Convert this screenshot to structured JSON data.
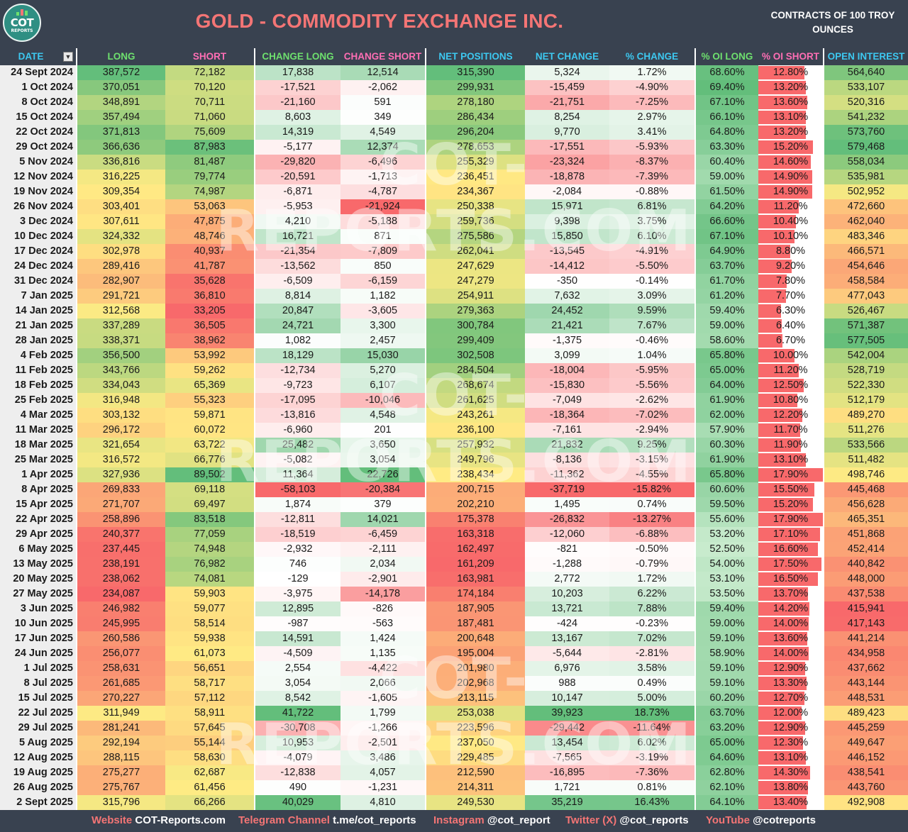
{
  "header": {
    "logo_text": "COT",
    "logo_sub": "REPORTS",
    "title": "GOLD - COMMODITY EXCHANGE INC.",
    "subtitle": "CONTRACTS OF 100 TROY OUNCES"
  },
  "columns": {
    "date": "DATE",
    "long": "LONG",
    "short": "SHORT",
    "change_long": "CHANGE LONG",
    "change_short": "CHANGE SHORT",
    "net_positions": "NET POSITIONS",
    "net_change": "NET CHANGE",
    "pct_change": "% CHANGE",
    "pct_oi_long": "% OI LONG",
    "pct_oi_short": "% OI SHORT",
    "open_interest": "OPEN INTEREST"
  },
  "watermark": "COT-REPORTS.COM",
  "footer": [
    {
      "label": "Website",
      "value": "COT-Reports.com"
    },
    {
      "label": "Telegram Channel",
      "value": "t.me/cot_reports"
    },
    {
      "label": "Instagram",
      "value": "@cot_report"
    },
    {
      "label": "Twitter (X)",
      "value": "@cot_reports"
    },
    {
      "label": "YouTube",
      "value": "@cotreports"
    }
  ],
  "rows": [
    [
      "24 Sept 2024",
      "387,572",
      "72,182",
      "17,838",
      "12,514",
      "315,390",
      "5,324",
      "1.72%",
      "68.60%",
      "12.80%",
      "564,640"
    ],
    [
      "1 Oct 2024",
      "370,051",
      "70,120",
      "-17,521",
      "-2,062",
      "299,931",
      "-15,459",
      "-4.90%",
      "69.40%",
      "13.20%",
      "533,107"
    ],
    [
      "8 Oct 2024",
      "348,891",
      "70,711",
      "-21,160",
      "591",
      "278,180",
      "-21,751",
      "-7.25%",
      "67.10%",
      "13.60%",
      "520,316"
    ],
    [
      "15 Oct 2024",
      "357,494",
      "71,060",
      "8,603",
      "349",
      "286,434",
      "8,254",
      "2.97%",
      "66.10%",
      "13.10%",
      "541,232"
    ],
    [
      "22 Oct 2024",
      "371,813",
      "75,609",
      "14,319",
      "4,549",
      "296,204",
      "9,770",
      "3.41%",
      "64.80%",
      "13.20%",
      "573,760"
    ],
    [
      "29 Oct 2024",
      "366,636",
      "87,983",
      "-5,177",
      "12,374",
      "278,653",
      "-17,551",
      "-5.93%",
      "63.30%",
      "15.20%",
      "579,468"
    ],
    [
      "5 Nov 2024",
      "336,816",
      "81,487",
      "-29,820",
      "-6,496",
      "255,329",
      "-23,324",
      "-8.37%",
      "60.40%",
      "14.60%",
      "558,034"
    ],
    [
      "12 Nov 2024",
      "316,225",
      "79,774",
      "-20,591",
      "-1,713",
      "236,451",
      "-18,878",
      "-7.39%",
      "59.00%",
      "14.90%",
      "535,981"
    ],
    [
      "19 Nov 2024",
      "309,354",
      "74,987",
      "-6,871",
      "-4,787",
      "234,367",
      "-2,084",
      "-0.88%",
      "61.50%",
      "14.90%",
      "502,952"
    ],
    [
      "26 Nov 2024",
      "303,401",
      "53,063",
      "-5,953",
      "-21,924",
      "250,338",
      "15,971",
      "6.81%",
      "64.20%",
      "11.20%",
      "472,660"
    ],
    [
      "3 Dec 2024",
      "307,611",
      "47,875",
      "4,210",
      "-5,188",
      "259,736",
      "9,398",
      "3.75%",
      "66.60%",
      "10.40%",
      "462,040"
    ],
    [
      "10 Dec 2024",
      "324,332",
      "48,746",
      "16,721",
      "871",
      "275,586",
      "15,850",
      "6.10%",
      "67.10%",
      "10.10%",
      "483,346"
    ],
    [
      "17 Dec 2024",
      "302,978",
      "40,937",
      "-21,354",
      "-7,809",
      "262,041",
      "-13,545",
      "-4.91%",
      "64.90%",
      "8.80%",
      "466,571"
    ],
    [
      "24 Dec 2024",
      "289,416",
      "41,787",
      "-13,562",
      "850",
      "247,629",
      "-14,412",
      "-5.50%",
      "63.70%",
      "9.20%",
      "454,646"
    ],
    [
      "31 Dec 2024",
      "282,907",
      "35,628",
      "-6,509",
      "-6,159",
      "247,279",
      "-350",
      "-0.14%",
      "61.70%",
      "7.80%",
      "458,584"
    ],
    [
      "7 Jan 2025",
      "291,721",
      "36,810",
      "8,814",
      "1,182",
      "254,911",
      "7,632",
      "3.09%",
      "61.20%",
      "7.70%",
      "477,043"
    ],
    [
      "14 Jan 2025",
      "312,568",
      "33,205",
      "20,847",
      "-3,605",
      "279,363",
      "24,452",
      "9.59%",
      "59.40%",
      "6.30%",
      "526,467"
    ],
    [
      "21 Jan 2025",
      "337,289",
      "36,505",
      "24,721",
      "3,300",
      "300,784",
      "21,421",
      "7.67%",
      "59.00%",
      "6.40%",
      "571,387"
    ],
    [
      "28 Jan 2025",
      "338,371",
      "38,962",
      "1,082",
      "2,457",
      "299,409",
      "-1,375",
      "-0.46%",
      "58.60%",
      "6.70%",
      "577,505"
    ],
    [
      "4 Feb 2025",
      "356,500",
      "53,992",
      "18,129",
      "15,030",
      "302,508",
      "3,099",
      "1.04%",
      "65.80%",
      "10.00%",
      "542,004"
    ],
    [
      "11 Feb 2025",
      "343,766",
      "59,262",
      "-12,734",
      "5,270",
      "284,504",
      "-18,004",
      "-5.95%",
      "65.00%",
      "11.20%",
      "528,719"
    ],
    [
      "18 Feb 2025",
      "334,043",
      "65,369",
      "-9,723",
      "6,107",
      "268,674",
      "-15,830",
      "-5.56%",
      "64.00%",
      "12.50%",
      "522,330"
    ],
    [
      "25 Feb 2025",
      "316,948",
      "55,323",
      "-17,095",
      "-10,046",
      "261,625",
      "-7,049",
      "-2.62%",
      "61.90%",
      "10.80%",
      "512,179"
    ],
    [
      "4 Mar 2025",
      "303,132",
      "59,871",
      "-13,816",
      "4,548",
      "243,261",
      "-18,364",
      "-7.02%",
      "62.00%",
      "12.20%",
      "489,270"
    ],
    [
      "11 Mar 2025",
      "296,172",
      "60,072",
      "-6,960",
      "201",
      "236,100",
      "-7,161",
      "-2.94%",
      "57.90%",
      "11.70%",
      "511,276"
    ],
    [
      "18 Mar 2025",
      "321,654",
      "63,722",
      "25,482",
      "3,650",
      "257,932",
      "21,832",
      "9.25%",
      "60.30%",
      "11.90%",
      "533,566"
    ],
    [
      "25 Mar 2025",
      "316,572",
      "66,776",
      "-5,082",
      "3,054",
      "249,796",
      "-8,136",
      "-3.15%",
      "61.90%",
      "13.10%",
      "511,482"
    ],
    [
      "1 Apr 2025",
      "327,936",
      "89,502",
      "11,364",
      "22,726",
      "238,434",
      "-11,362",
      "-4.55%",
      "65.80%",
      "17.90%",
      "498,746"
    ],
    [
      "8 Apr 2025",
      "269,833",
      "69,118",
      "-58,103",
      "-20,384",
      "200,715",
      "-37,719",
      "-15.82%",
      "60.60%",
      "15.50%",
      "445,468"
    ],
    [
      "15 Apr 2025",
      "271,707",
      "69,497",
      "1,874",
      "379",
      "202,210",
      "1,495",
      "0.74%",
      "59.50%",
      "15.20%",
      "456,628"
    ],
    [
      "22 Apr 2025",
      "258,896",
      "83,518",
      "-12,811",
      "14,021",
      "175,378",
      "-26,832",
      "-13.27%",
      "55.60%",
      "17.90%",
      "465,351"
    ],
    [
      "29 Apr 2025",
      "240,377",
      "77,059",
      "-18,519",
      "-6,459",
      "163,318",
      "-12,060",
      "-6.88%",
      "53.20%",
      "17.10%",
      "451,868"
    ],
    [
      "6 May 2025",
      "237,445",
      "74,948",
      "-2,932",
      "-2,111",
      "162,497",
      "-821",
      "-0.50%",
      "52.50%",
      "16.60%",
      "452,414"
    ],
    [
      "13 May 2025",
      "238,191",
      "76,982",
      "746",
      "2,034",
      "161,209",
      "-1,288",
      "-0.79%",
      "54.00%",
      "17.50%",
      "440,842"
    ],
    [
      "20 May 2025",
      "238,062",
      "74,081",
      "-129",
      "-2,901",
      "163,981",
      "2,772",
      "1.72%",
      "53.10%",
      "16.50%",
      "448,000"
    ],
    [
      "27 May 2025",
      "234,087",
      "59,903",
      "-3,975",
      "-14,178",
      "174,184",
      "10,203",
      "6.22%",
      "53.50%",
      "13.70%",
      "437,538"
    ],
    [
      "3 Jun 2025",
      "246,982",
      "59,077",
      "12,895",
      "-826",
      "187,905",
      "13,721",
      "7.88%",
      "59.40%",
      "14.20%",
      "415,941"
    ],
    [
      "10 Jun 2025",
      "245,995",
      "58,514",
      "-987",
      "-563",
      "187,481",
      "-424",
      "-0.23%",
      "59.00%",
      "14.00%",
      "417,143"
    ],
    [
      "17 Jun 2025",
      "260,586",
      "59,938",
      "14,591",
      "1,424",
      "200,648",
      "13,167",
      "7.02%",
      "59.10%",
      "13.60%",
      "441,214"
    ],
    [
      "24 Jun 2025",
      "256,077",
      "61,073",
      "-4,509",
      "1,135",
      "195,004",
      "-5,644",
      "-2.81%",
      "58.90%",
      "14.00%",
      "434,958"
    ],
    [
      "1 Jul 2025",
      "258,631",
      "56,651",
      "2,554",
      "-4,422",
      "201,980",
      "6,976",
      "3.58%",
      "59.10%",
      "12.90%",
      "437,662"
    ],
    [
      "8 Jul 2025",
      "261,685",
      "58,717",
      "3,054",
      "2,066",
      "202,968",
      "988",
      "0.49%",
      "59.10%",
      "13.30%",
      "443,144"
    ],
    [
      "15 Jul 2025",
      "270,227",
      "57,112",
      "8,542",
      "-1,605",
      "213,115",
      "10,147",
      "5.00%",
      "60.20%",
      "12.70%",
      "448,531"
    ],
    [
      "22 Jul 2025",
      "311,949",
      "58,911",
      "41,722",
      "1,799",
      "253,038",
      "39,923",
      "18.73%",
      "63.70%",
      "12.00%",
      "489,423"
    ],
    [
      "29 Jul 2025",
      "281,241",
      "57,645",
      "-30,708",
      "-1,266",
      "223,596",
      "-29,442",
      "-11.64%",
      "63.20%",
      "12.90%",
      "445,259"
    ],
    [
      "5 Aug 2025",
      "292,194",
      "55,144",
      "10,953",
      "-2,501",
      "237,050",
      "13,454",
      "6.02%",
      "65.00%",
      "12.30%",
      "449,647"
    ],
    [
      "12 Aug 2025",
      "288,115",
      "58,630",
      "-4,079",
      "3,486",
      "229,485",
      "-7,565",
      "-3.19%",
      "64.60%",
      "13.10%",
      "446,152"
    ],
    [
      "19 Aug 2025",
      "275,277",
      "62,687",
      "-12,838",
      "4,057",
      "212,590",
      "-16,895",
      "-7.36%",
      "62.80%",
      "14.30%",
      "438,541"
    ],
    [
      "26 Aug 2025",
      "275,767",
      "61,456",
      "490",
      "-1,231",
      "214,311",
      "1,721",
      "0.81%",
      "62.10%",
      "13.80%",
      "443,760"
    ],
    [
      "2 Sept 2025",
      "315,796",
      "66,266",
      "40,029",
      "4,810",
      "249,530",
      "35,219",
      "16.43%",
      "64.10%",
      "13.40%",
      "492,908"
    ]
  ]
}
